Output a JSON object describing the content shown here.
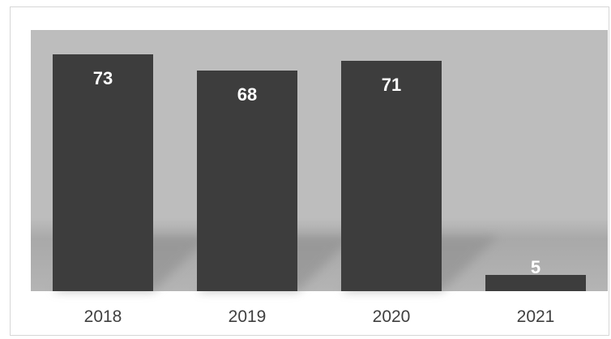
{
  "chart_data": {
    "type": "bar",
    "title": "",
    "xlabel": "",
    "ylabel": "",
    "categories": [
      "2018",
      "2019",
      "2020",
      "2021"
    ],
    "values": [
      73,
      68,
      71,
      5
    ],
    "data_labels": [
      "73",
      "68",
      "71",
      "5"
    ],
    "ylim": [
      0,
      80
    ],
    "grid": false,
    "legend": "none",
    "colors": {
      "bar": "#3d3d3d",
      "plot_area": "#bdbdbd",
      "label": "#ffffff",
      "tick": "#404040"
    }
  }
}
